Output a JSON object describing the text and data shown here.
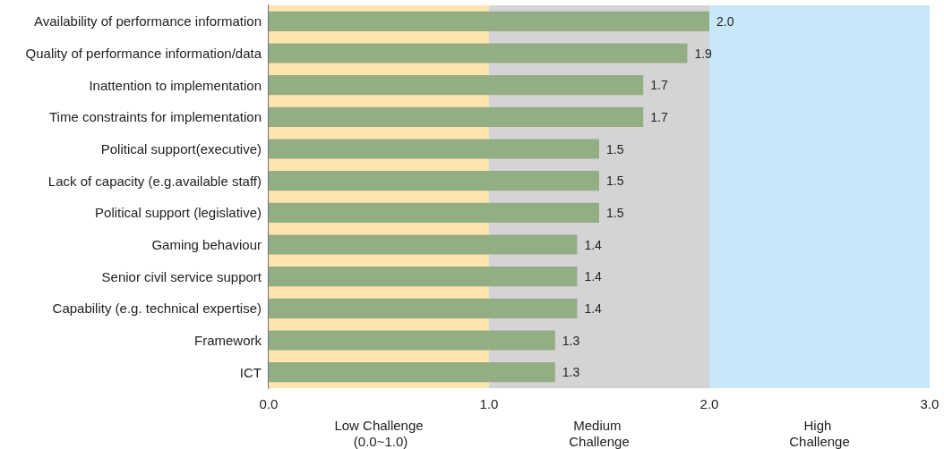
{
  "chart_data": {
    "type": "bar",
    "orientation": "horizontal",
    "categories": [
      "Availability of performance information",
      "Quality of performance information/data",
      "Inattention to implementation",
      "Time constraints for implementation",
      "Political support(executive)",
      "Lack of capacity (e.g.available staff)",
      "Political support (legislative)",
      "Gaming behaviour",
      "Senior civil service support",
      "Capability (e.g. technical expertise)",
      "Framework",
      "ICT"
    ],
    "values": [
      2.0,
      1.9,
      1.7,
      1.7,
      1.5,
      1.5,
      1.5,
      1.4,
      1.4,
      1.4,
      1.3,
      1.3
    ],
    "value_labels": [
      "2.0",
      "1.9",
      "1.7",
      "1.7",
      "1.5",
      "1.5",
      "1.5",
      "1.4",
      "1.4",
      "1.4",
      "1.3",
      "1.3"
    ],
    "color": "#94ae84",
    "xlim": [
      0,
      3
    ],
    "xticks": [
      {
        "value": 0,
        "label": "0.0"
      },
      {
        "value": 1,
        "label": "1.0"
      },
      {
        "value": 2,
        "label": "2.0"
      },
      {
        "value": 3,
        "label": "3.0"
      }
    ],
    "bands": [
      {
        "axis": "x",
        "from": 0,
        "to": 1,
        "label": "Low Challenge (0.0~1.0)",
        "color": "#fde5b0"
      },
      {
        "axis": "x",
        "from": 1,
        "to": 2,
        "label": "Medium Challenge",
        "color": "#d4d4d6"
      },
      {
        "axis": "x",
        "from": 2,
        "to": 3,
        "label": "High Challenge",
        "color": "#c6e8f8"
      }
    ],
    "grid": false
  }
}
